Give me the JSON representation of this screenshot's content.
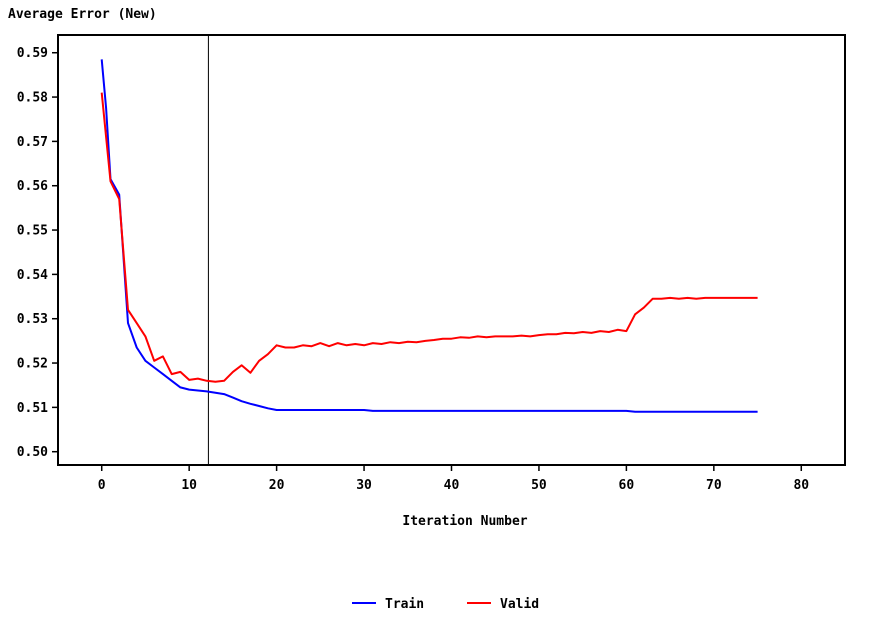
{
  "chart_data": {
    "type": "line",
    "ylabel": "Average Error (New)",
    "xlabel": "Iteration Number",
    "xlim": [
      -5,
      85
    ],
    "ylim": [
      0.497,
      0.594
    ],
    "xticks": [
      0,
      10,
      20,
      30,
      40,
      50,
      60,
      70,
      80
    ],
    "yticks": [
      0.5,
      0.51,
      0.52,
      0.53,
      0.54,
      0.55,
      0.56,
      0.57,
      0.58,
      0.59
    ],
    "reference_line_x": 12.2,
    "grid": false,
    "legend_position": "bottom",
    "series": [
      {
        "name": "Train",
        "color": "#0000ff",
        "x": [
          0,
          0.5,
          1,
          2,
          3,
          4,
          5,
          6,
          7,
          8,
          9,
          10,
          11,
          12,
          13,
          14,
          15,
          16,
          17,
          18,
          19,
          20,
          25,
          30,
          31,
          40,
          50,
          60,
          61,
          70,
          75
        ],
        "y": [
          0.5885,
          0.5775,
          0.5615,
          0.558,
          0.529,
          0.5235,
          0.5205,
          0.519,
          0.5175,
          0.516,
          0.5145,
          0.514,
          0.5138,
          0.5136,
          0.5133,
          0.513,
          0.5122,
          0.5114,
          0.5108,
          0.5103,
          0.5098,
          0.5094,
          0.5094,
          0.5094,
          0.5092,
          0.5092,
          0.5092,
          0.5092,
          0.509,
          0.509,
          0.509
        ]
      },
      {
        "name": "Valid",
        "color": "#ff0000",
        "x": [
          0,
          0.5,
          1,
          2,
          3,
          4,
          5,
          6,
          7,
          8,
          9,
          10,
          11,
          12,
          13,
          14,
          15,
          16,
          17,
          18,
          19,
          20,
          21,
          22,
          23,
          24,
          25,
          26,
          27,
          28,
          29,
          30,
          31,
          32,
          33,
          34,
          35,
          36,
          37,
          38,
          39,
          40,
          41,
          42,
          43,
          44,
          45,
          46,
          47,
          48,
          49,
          50,
          51,
          52,
          53,
          54,
          55,
          56,
          57,
          58,
          59,
          60,
          61,
          62,
          63,
          64,
          65,
          66,
          67,
          68,
          69,
          70,
          75
        ],
        "y": [
          0.581,
          0.571,
          0.561,
          0.557,
          0.532,
          0.529,
          0.526,
          0.5205,
          0.5215,
          0.5175,
          0.518,
          0.5162,
          0.5165,
          0.516,
          0.5158,
          0.516,
          0.518,
          0.5195,
          0.5178,
          0.5205,
          0.522,
          0.524,
          0.5235,
          0.5235,
          0.524,
          0.5238,
          0.5245,
          0.5238,
          0.5245,
          0.524,
          0.5243,
          0.524,
          0.5245,
          0.5243,
          0.5247,
          0.5245,
          0.5248,
          0.5247,
          0.525,
          0.5252,
          0.5255,
          0.5255,
          0.5258,
          0.5257,
          0.526,
          0.5258,
          0.526,
          0.526,
          0.526,
          0.5262,
          0.526,
          0.5263,
          0.5265,
          0.5265,
          0.5268,
          0.5267,
          0.527,
          0.5268,
          0.5272,
          0.527,
          0.5275,
          0.5272,
          0.531,
          0.5325,
          0.5345,
          0.5345,
          0.5347,
          0.5345,
          0.5347,
          0.5345,
          0.5347,
          0.5347,
          0.5347
        ]
      }
    ]
  }
}
